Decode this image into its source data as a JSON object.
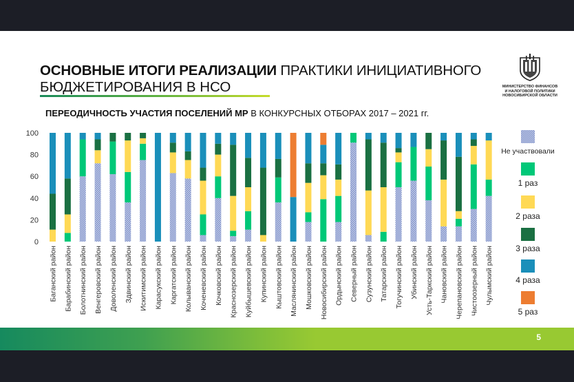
{
  "slide": {
    "title_bold": "ОСНОВНЫЕ ИТОГИ РЕАЛИЗАЦИИ",
    "title_regular": " ПРАКТИКИ ИНИЦИАТИВНОГО",
    "title_line2": "БЮДЖЕТИРОВАНИЯ В НСО",
    "subtitle_bold": "ПЕРЕОДИЧНОСТЬ УЧАСТИЯ ПОСЕЛЕНИЙ МР",
    "subtitle_regular": " В КОНКУРСНЫХ ОТБОРАХ 2017 – 2021 гг.",
    "logo_lines": [
      "МИНИСТЕРСТВО ФИНАНСОВ",
      "И НАЛОГОВОЙ ПОЛИТИКИ",
      "НОВОСИБИРСКОЙ ОБЛАСТИ"
    ],
    "page_number": "5"
  },
  "chart_data": {
    "type": "bar",
    "stacked": true,
    "title": "ПЕРЕОДИЧНОСТЬ УЧАСТИЯ ПОСЕЛЕНИЙ МР В КОНКУРСНЫХ ОТБОРАХ 2017 – 2021 гг.",
    "xlabel": "",
    "ylabel": "",
    "ylim": [
      0,
      100
    ],
    "yticks": [
      0,
      20,
      40,
      60,
      80,
      100
    ],
    "grid": false,
    "legend_position": "right",
    "categories": [
      "Баганский район",
      "Барабинский район",
      "Болотнинский район",
      "Венгеровский район",
      "Доволенский район",
      "Здвинский район",
      "Искитимский район",
      "Карасукский район",
      "Каргатский район",
      "Колыванский район",
      "Коченевский район",
      "Кочковский район",
      "Краснозерский район",
      "Куйбышевский район",
      "Купинский район",
      "Кыштовский район",
      "Маслянинский район",
      "Мошковский район",
      "Новосибирский район",
      "Ордынский район",
      "Северный район",
      "Сузунский район",
      "Татарский район",
      "Тогучинский район",
      "Убинский район",
      "Усть-Таркский район",
      "Чановский район",
      "Черепановский район",
      "Чистоозерный район",
      "Чулымский район"
    ],
    "series": [
      {
        "name": "Не участвовали",
        "color": "#a9b7dc",
        "pattern": true,
        "values": [
          0,
          0,
          60,
          72,
          62,
          36,
          75,
          0,
          63,
          58,
          6,
          40,
          5,
          11,
          0,
          36,
          0,
          18,
          0,
          18,
          91,
          6,
          0,
          50,
          56,
          38,
          14,
          14,
          30,
          42
        ]
      },
      {
        "name": "1 раз",
        "color": "#00c878",
        "values": [
          0,
          8,
          34,
          0,
          30,
          28,
          15,
          0,
          0,
          0,
          19,
          20,
          5,
          17,
          0,
          23,
          0,
          9,
          39,
          24,
          9,
          0,
          9,
          23,
          31,
          31,
          0,
          7,
          41,
          15
        ]
      },
      {
        "name": "2 раза",
        "color": "#ffd955",
        "values": [
          11,
          17,
          0,
          12,
          0,
          29,
          5,
          0,
          19,
          17,
          31,
          20,
          32,
          22,
          6,
          0,
          0,
          27,
          22,
          15,
          0,
          41,
          41,
          9,
          0,
          16,
          43,
          7,
          17,
          36
        ]
      },
      {
        "name": "3 раза",
        "color": "#1a7042",
        "values": [
          33,
          33,
          0,
          10,
          8,
          7,
          5,
          0,
          9,
          8,
          12,
          10,
          47,
          27,
          62,
          17,
          0,
          18,
          11,
          14,
          0,
          47,
          41,
          4,
          0,
          15,
          36,
          50,
          6,
          0
        ]
      },
      {
        "name": "4 раза",
        "color": "#1a8fba",
        "values": [
          56,
          42,
          6,
          6,
          0,
          0,
          0,
          100,
          9,
          17,
          32,
          10,
          11,
          23,
          32,
          24,
          41,
          28,
          17,
          29,
          0,
          6,
          9,
          14,
          13,
          0,
          7,
          22,
          6,
          7
        ]
      },
      {
        "name": "5 раз",
        "color": "#ed7d31",
        "values": [
          0,
          0,
          0,
          0,
          0,
          0,
          0,
          0,
          0,
          0,
          0,
          0,
          0,
          0,
          0,
          0,
          59,
          0,
          11,
          0,
          0,
          0,
          0,
          0,
          0,
          0,
          0,
          0,
          0,
          0
        ]
      }
    ]
  }
}
